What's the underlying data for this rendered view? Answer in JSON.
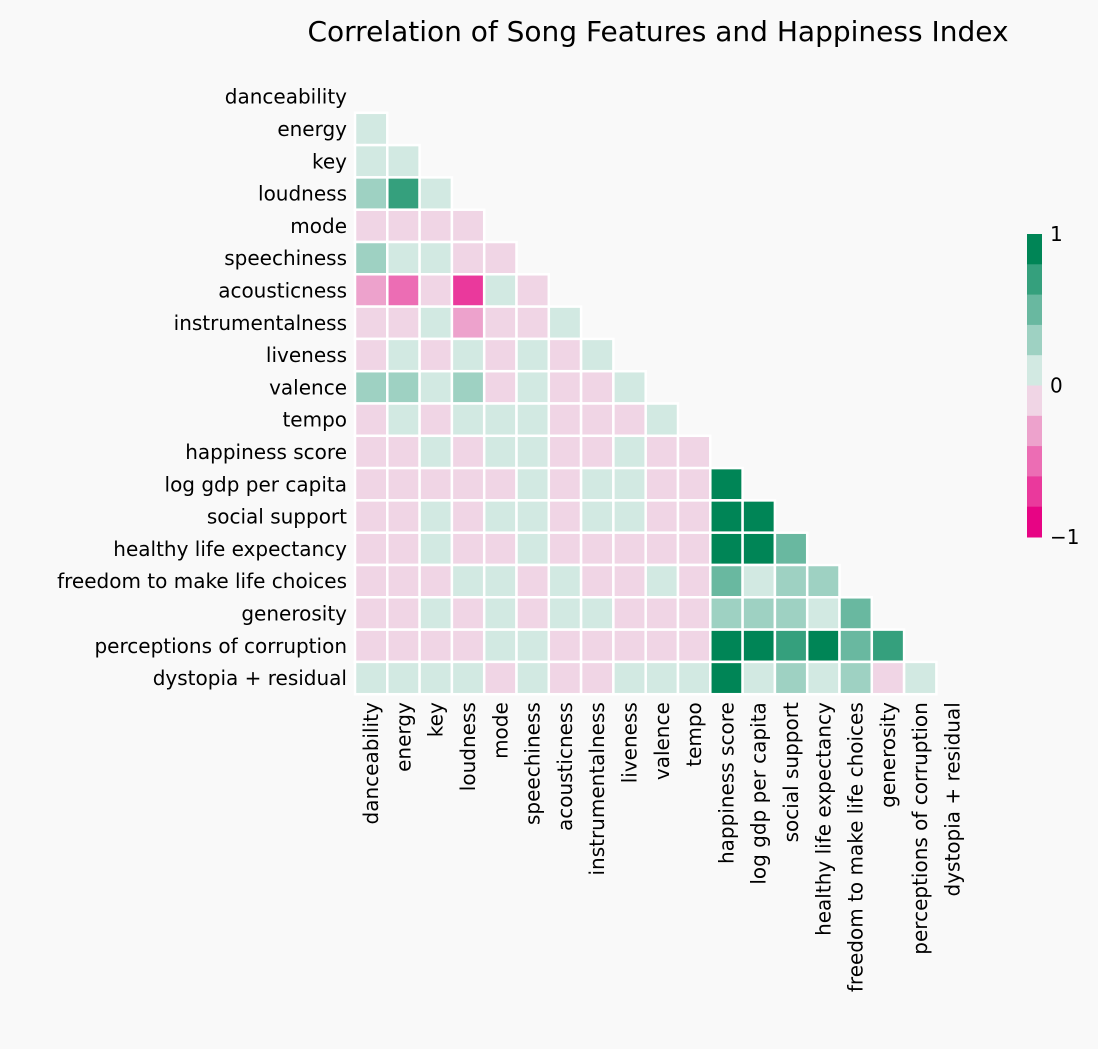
{
  "chart_data": {
    "type": "heatmap",
    "title": "Correlation of Song Features and Happiness Index",
    "variables": [
      "danceability",
      "energy",
      "key",
      "loudness",
      "mode",
      "speechiness",
      "acousticness",
      "instrumentalness",
      "liveness",
      "valence",
      "tempo",
      "happiness score",
      "log gdp per capita",
      "social support",
      "healthy life expectancy",
      "freedom to make life choices",
      "generosity",
      "perceptions of corruption",
      "dystopia + residual"
    ],
    "mask": "upper triangle including diagonal",
    "matrix_lower": [
      [],
      [
        0.1
      ],
      [
        0.1,
        0.1
      ],
      [
        0.35,
        0.75,
        0.1
      ],
      [
        -0.1,
        -0.1,
        -0.1,
        -0.1
      ],
      [
        0.4,
        0.1,
        0.1,
        -0.1,
        -0.1
      ],
      [
        -0.3,
        -0.55,
        -0.1,
        -0.6,
        0.1,
        -0.1
      ],
      [
        -0.1,
        -0.1,
        0.1,
        -0.35,
        -0.1,
        -0.1,
        0.1
      ],
      [
        -0.1,
        0.1,
        -0.1,
        0.1,
        -0.1,
        0.1,
        -0.1,
        0.1
      ],
      [
        0.4,
        0.35,
        0.1,
        0.35,
        -0.1,
        0.1,
        -0.1,
        -0.1,
        0.1
      ],
      [
        -0.1,
        0.1,
        -0.1,
        0.1,
        0.1,
        0.1,
        -0.1,
        -0.1,
        -0.1,
        0.1
      ],
      [
        -0.1,
        -0.1,
        0.1,
        -0.1,
        0.1,
        0.1,
        -0.1,
        -0.1,
        0.1,
        -0.1,
        -0.1
      ],
      [
        -0.1,
        -0.1,
        -0.1,
        -0.1,
        -0.1,
        0.1,
        -0.1,
        0.1,
        0.1,
        -0.1,
        -0.1,
        0.8
      ],
      [
        -0.1,
        -0.1,
        0.1,
        -0.1,
        0.1,
        0.1,
        -0.1,
        0.1,
        0.1,
        -0.1,
        -0.1,
        0.8,
        0.8
      ],
      [
        -0.1,
        -0.1,
        0.1,
        -0.1,
        -0.1,
        0.1,
        -0.1,
        -0.1,
        -0.1,
        -0.1,
        -0.1,
        0.8,
        0.8,
        0.6
      ],
      [
        -0.1,
        -0.1,
        -0.1,
        0.1,
        0.1,
        -0.1,
        0.1,
        -0.1,
        -0.1,
        0.1,
        -0.1,
        0.6,
        0.15,
        0.4,
        0.35
      ],
      [
        -0.1,
        -0.1,
        0.1,
        -0.1,
        0.1,
        -0.1,
        0.1,
        0.1,
        -0.1,
        -0.1,
        -0.1,
        0.35,
        0.4,
        0.35,
        0.1,
        0.6
      ],
      [
        -0.1,
        -0.1,
        -0.1,
        -0.1,
        0.1,
        0.1,
        -0.1,
        -0.1,
        -0.1,
        -0.1,
        -0.1,
        0.8,
        0.8,
        0.7,
        0.8,
        0.6,
        0.7
      ],
      [
        0.1,
        0.1,
        0.1,
        0.1,
        -0.1,
        0.1,
        -0.1,
        -0.1,
        0.1,
        0.1,
        0.1,
        0.8,
        0.1,
        0.4,
        0.1,
        0.35,
        -0.1,
        0.1
      ]
    ],
    "vmin": -1,
    "vmax": 1,
    "colorbar": {
      "ticks": [
        "1",
        "0",
        "−1"
      ],
      "colors": [
        "#008556",
        "#35a07d",
        "#69b8a0",
        "#9ed1c2",
        "#d2e9e2",
        "#f0d5e5",
        "#eda2cc",
        "#ec6db4",
        "#ea399c",
        "#e70484"
      ]
    }
  }
}
